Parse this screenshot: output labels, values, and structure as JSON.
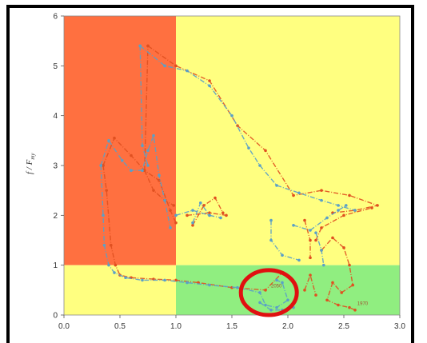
{
  "chart_data": {
    "type": "scatter",
    "title": "",
    "xlabel": "",
    "ylabel": "f / F",
    "ylabel_sub": "my",
    "xlim": [
      0,
      3
    ],
    "ylim": [
      0,
      6
    ],
    "x_ticks": [
      "0.0",
      "0.5",
      "1.0",
      "1.5",
      "2.0",
      "2.5",
      "3.0"
    ],
    "y_ticks": [
      "0",
      "1",
      "2",
      "3",
      "4",
      "5",
      "6"
    ],
    "grid": false,
    "regions": [
      {
        "name": "red-zone",
        "x": [
          0,
          1
        ],
        "y": [
          1,
          6
        ],
        "color": "#ff7040"
      },
      {
        "name": "yellow-upper",
        "x": [
          1,
          3
        ],
        "y": [
          1,
          6
        ],
        "color": "#ffff80"
      },
      {
        "name": "yellow-lower",
        "x": [
          0,
          1
        ],
        "y": [
          0,
          1
        ],
        "color": "#ffff80"
      },
      {
        "name": "green-zone",
        "x": [
          1,
          3
        ],
        "y": [
          0,
          1
        ],
        "color": "#90ee80"
      }
    ],
    "series": [
      {
        "color": "#e05020",
        "segments": [
          [
            [
              0.35,
              3.0
            ],
            [
              0.38,
              2.5
            ],
            [
              0.42,
              1.4
            ],
            [
              0.46,
              1.0
            ],
            [
              0.5,
              0.8
            ],
            [
              0.6,
              0.75
            ],
            [
              0.8,
              0.72
            ],
            [
              1.0,
              0.7
            ],
            [
              1.2,
              0.65
            ],
            [
              1.5,
              0.55
            ],
            [
              1.8,
              0.5
            ],
            [
              1.95,
              0.85
            ]
          ],
          [
            [
              0.35,
              3.0
            ],
            [
              0.45,
              3.55
            ],
            [
              0.6,
              3.2
            ],
            [
              0.72,
              2.9
            ],
            [
              0.85,
              2.7
            ],
            [
              0.95,
              2.1
            ],
            [
              1.0,
              1.85
            ]
          ],
          [
            [
              0.75,
              5.4
            ],
            [
              1.0,
              5.0
            ],
            [
              1.3,
              4.7
            ],
            [
              1.55,
              3.8
            ],
            [
              1.8,
              3.3
            ],
            [
              2.05,
              2.4
            ],
            [
              2.3,
              2.5
            ],
            [
              2.55,
              2.4
            ],
            [
              2.8,
              2.2
            ],
            [
              2.6,
              2.1
            ],
            [
              2.4,
              2.05
            ]
          ],
          [
            [
              0.72,
              2.9
            ],
            [
              0.75,
              5.4
            ]
          ],
          [
            [
              0.72,
              2.9
            ],
            [
              0.8,
              2.5
            ],
            [
              0.9,
              2.3
            ],
            [
              0.98,
              2.2
            ]
          ],
          [
            [
              1.1,
              2.0
            ],
            [
              1.3,
              2.05
            ],
            [
              1.45,
              2.0
            ]
          ],
          [
            [
              1.15,
              1.8
            ],
            [
              1.25,
              2.2
            ],
            [
              1.35,
              2.35
            ],
            [
              1.42,
              2.05
            ]
          ],
          [
            [
              2.15,
              1.9
            ],
            [
              2.2,
              1.5
            ],
            [
              2.2,
              1.15
            ]
          ],
          [
            [
              2.25,
              1.5
            ],
            [
              2.3,
              1.75
            ],
            [
              2.5,
              2.0
            ],
            [
              2.75,
              2.15
            ]
          ],
          [
            [
              2.3,
              1.3
            ],
            [
              2.4,
              1.55
            ],
            [
              2.5,
              1.35
            ],
            [
              2.55,
              1.0
            ],
            [
              2.58,
              0.6
            ],
            [
              2.48,
              0.45
            ],
            [
              2.4,
              0.65
            ],
            [
              2.35,
              0.3
            ],
            [
              2.45,
              0.2
            ],
            [
              2.55,
              0.15
            ],
            [
              2.6,
              0.1
            ]
          ],
          [
            [
              2.15,
              0.5
            ],
            [
              2.2,
              0.8
            ],
            [
              2.25,
              0.4
            ]
          ]
        ]
      },
      {
        "color": "#5aa0c8",
        "segments": [
          [
            [
              0.33,
              3.0
            ],
            [
              0.35,
              2.0
            ],
            [
              0.36,
              1.4
            ],
            [
              0.4,
              1.0
            ],
            [
              0.45,
              0.85
            ],
            [
              0.55,
              0.75
            ],
            [
              0.7,
              0.7
            ],
            [
              0.9,
              0.7
            ],
            [
              1.1,
              0.65
            ],
            [
              1.3,
              0.6
            ],
            [
              1.55,
              0.55
            ],
            [
              1.75,
              0.45
            ],
            [
              1.8,
              0.2
            ],
            [
              1.9,
              0.15
            ],
            [
              2.0,
              0.3
            ],
            [
              1.95,
              0.65
            ],
            [
              1.9,
              0.7
            ]
          ],
          [
            [
              0.33,
              3.0
            ],
            [
              0.4,
              3.5
            ],
            [
              0.52,
              3.1
            ],
            [
              0.6,
              2.9
            ],
            [
              0.7,
              2.9
            ],
            [
              0.75,
              3.3
            ],
            [
              0.8,
              3.6
            ],
            [
              0.85,
              2.8
            ],
            [
              0.9,
              2.3
            ],
            [
              0.95,
              1.75
            ]
          ],
          [
            [
              0.68,
              5.4
            ],
            [
              0.7,
              3.4
            ],
            [
              0.75,
              3.0
            ]
          ],
          [
            [
              0.68,
              5.4
            ],
            [
              0.9,
              5.0
            ],
            [
              1.1,
              4.9
            ],
            [
              1.3,
              4.6
            ],
            [
              1.5,
              4.0
            ],
            [
              1.65,
              3.35
            ],
            [
              1.75,
              3.0
            ],
            [
              1.9,
              2.6
            ],
            [
              2.1,
              2.45
            ],
            [
              2.3,
              2.3
            ],
            [
              2.45,
              2.2
            ],
            [
              2.6,
              2.1
            ]
          ],
          [
            [
              1.0,
              2.0
            ],
            [
              1.15,
              2.1
            ],
            [
              1.3,
              2.0
            ],
            [
              1.4,
              1.95
            ]
          ],
          [
            [
              1.15,
              1.85
            ],
            [
              1.22,
              2.25
            ],
            [
              1.3,
              2.0
            ]
          ],
          [
            [
              1.85,
              1.9
            ],
            [
              1.85,
              1.5
            ],
            [
              1.95,
              1.2
            ],
            [
              2.1,
              1.1
            ]
          ],
          [
            [
              2.05,
              1.8
            ],
            [
              2.2,
              1.7
            ],
            [
              2.35,
              1.95
            ],
            [
              2.45,
              2.1
            ],
            [
              2.52,
              2.2
            ]
          ],
          [
            [
              2.25,
              1.65
            ],
            [
              2.3,
              1.3
            ],
            [
              2.32,
              1.0
            ]
          ],
          [
            [
              1.75,
              0.25
            ],
            [
              1.85,
              0.1
            ],
            [
              1.95,
              0.1
            ],
            [
              2.05,
              0.15
            ]
          ]
        ]
      }
    ],
    "annotations": [
      {
        "text": "2050",
        "x": 1.85,
        "y": 0.55
      },
      {
        "text": "1970",
        "x": 2.62,
        "y": 0.2
      }
    ],
    "highlight": {
      "shape": "ellipse",
      "cx": 1.83,
      "cy": 0.45,
      "rx": 0.25,
      "ry": 0.45,
      "color": "#e01010"
    }
  }
}
